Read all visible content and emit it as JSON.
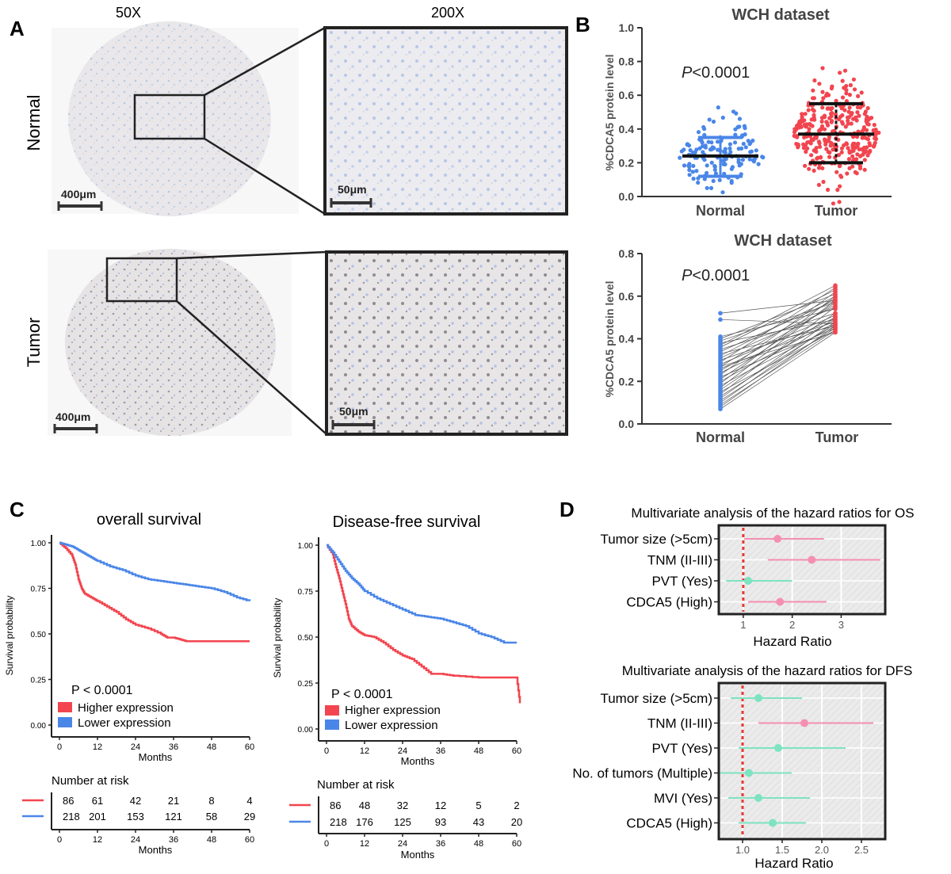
{
  "panel_labels": {
    "a": "A",
    "b": "B",
    "c": "C",
    "d": "D"
  },
  "panel_a": {
    "col_labels": [
      "50X",
      "200X"
    ],
    "row_labels": [
      "Normal",
      "Tumor"
    ],
    "scale_50x": "400μm",
    "scale_200x": "50μm"
  },
  "panel_b": {
    "y_ticks": [
      "0.0",
      "0.2",
      "0.4",
      "0.6",
      "0.8",
      "1.0"
    ],
    "y_ticks_paired": [
      "0.0",
      "0.2",
      "0.4",
      "0.6",
      "0.8"
    ],
    "p_prefix": "P",
    "p_suffix": "<0.0001"
  },
  "panel_c": {
    "y_ticks": [
      "0.00",
      "0.25",
      "0.50",
      "0.75",
      "1.00"
    ],
    "x_ticks": [
      "0",
      "12",
      "24",
      "36",
      "48",
      "60"
    ],
    "risk_title": "Number at risk"
  },
  "panel_d": {
    "x_ticks_os": [
      "1",
      "2",
      "3"
    ],
    "x_ticks_dfs": [
      "1.0",
      "1.5",
      "2.0",
      "2.5"
    ]
  },
  "colors": {
    "normal": "#4a86e8",
    "tumor": "#f2454f",
    "pink": "#f48fb1",
    "mint": "#7de3c0",
    "ref": "#e53935"
  },
  "chart_data": [
    {
      "type": "scatter",
      "title": "WCH dataset",
      "xlabel": "",
      "ylabel": "%CDCA5 protein level",
      "categories": [
        "Normal",
        "Tumor"
      ],
      "ylim": [
        0,
        1.0
      ],
      "annotation": "P<0.0001",
      "summary": {
        "Normal": {
          "median": 0.24,
          "lower": 0.12,
          "upper": 0.35
        },
        "Tumor": {
          "median": 0.37,
          "lower": 0.2,
          "upper": 0.55
        }
      }
    },
    {
      "type": "line",
      "title": "WCH dataset",
      "xlabel": "",
      "ylabel": "%CDCA5 protein level",
      "categories": [
        "Normal",
        "Tumor"
      ],
      "ylim": [
        0,
        0.8
      ],
      "annotation": "P<0.0001",
      "pairs": [
        [
          0.07,
          0.43
        ],
        [
          0.08,
          0.46
        ],
        [
          0.09,
          0.44
        ],
        [
          0.1,
          0.48
        ],
        [
          0.11,
          0.45
        ],
        [
          0.12,
          0.5
        ],
        [
          0.13,
          0.47
        ],
        [
          0.14,
          0.55
        ],
        [
          0.15,
          0.44
        ],
        [
          0.16,
          0.52
        ],
        [
          0.17,
          0.58
        ],
        [
          0.18,
          0.46
        ],
        [
          0.19,
          0.6
        ],
        [
          0.2,
          0.49
        ],
        [
          0.21,
          0.57
        ],
        [
          0.22,
          0.45
        ],
        [
          0.23,
          0.62
        ],
        [
          0.24,
          0.5
        ],
        [
          0.25,
          0.56
        ],
        [
          0.26,
          0.47
        ],
        [
          0.27,
          0.59
        ],
        [
          0.28,
          0.51
        ],
        [
          0.29,
          0.64
        ],
        [
          0.3,
          0.48
        ],
        [
          0.31,
          0.55
        ],
        [
          0.32,
          0.6
        ],
        [
          0.33,
          0.46
        ],
        [
          0.34,
          0.58
        ],
        [
          0.35,
          0.52
        ],
        [
          0.36,
          0.63
        ],
        [
          0.38,
          0.49
        ],
        [
          0.39,
          0.57
        ],
        [
          0.4,
          0.61
        ],
        [
          0.41,
          0.54
        ],
        [
          0.52,
          0.58
        ],
        [
          0.49,
          0.47
        ],
        [
          0.37,
          0.65
        ],
        [
          0.27,
          0.43
        ]
      ]
    },
    {
      "type": "line",
      "title": "overall survival",
      "xlabel": "Months",
      "ylabel": "Survival probability",
      "xlim": [
        0,
        60
      ],
      "ylim": [
        0,
        1
      ],
      "annotation": "P < 0.0001",
      "series": [
        {
          "name": "Higher expression",
          "x": [
            0,
            2,
            4,
            5,
            6,
            7,
            8,
            10,
            12,
            15,
            18,
            21,
            24,
            28,
            32,
            34,
            36,
            38,
            40,
            48,
            60
          ],
          "y": [
            1,
            0.97,
            0.93,
            0.88,
            0.8,
            0.75,
            0.72,
            0.7,
            0.68,
            0.65,
            0.62,
            0.58,
            0.55,
            0.53,
            0.5,
            0.48,
            0.48,
            0.47,
            0.46,
            0.46,
            0.46
          ]
        },
        {
          "name": "Lower expression",
          "x": [
            0,
            2,
            4,
            6,
            8,
            10,
            12,
            16,
            20,
            24,
            28,
            32,
            36,
            40,
            44,
            48,
            52,
            56,
            60
          ],
          "y": [
            1,
            0.99,
            0.98,
            0.96,
            0.94,
            0.92,
            0.9,
            0.87,
            0.85,
            0.82,
            0.8,
            0.79,
            0.78,
            0.77,
            0.76,
            0.75,
            0.73,
            0.7,
            0.68
          ]
        }
      ],
      "risk_table": {
        "times": [
          0,
          12,
          24,
          36,
          48,
          60
        ],
        "rows": [
          [
            86,
            61,
            42,
            21,
            8,
            4
          ],
          [
            218,
            201,
            153,
            121,
            58,
            29
          ]
        ]
      }
    },
    {
      "type": "line",
      "title": "Disease-free survival",
      "xlabel": "Months",
      "ylabel": "Survival probability",
      "xlim": [
        0,
        60
      ],
      "ylim": [
        0,
        1
      ],
      "annotation": "P < 0.0001",
      "series": [
        {
          "name": "Higher expression",
          "x": [
            0,
            2,
            3,
            4,
            5,
            6,
            7,
            8,
            10,
            12,
            15,
            18,
            21,
            24,
            27,
            30,
            33,
            36,
            40,
            48,
            56,
            58,
            60,
            61
          ],
          "y": [
            1,
            0.95,
            0.88,
            0.82,
            0.75,
            0.68,
            0.6,
            0.56,
            0.53,
            0.51,
            0.5,
            0.47,
            0.43,
            0.4,
            0.38,
            0.34,
            0.3,
            0.3,
            0.29,
            0.28,
            0.28,
            0.28,
            0.28,
            0.14
          ]
        },
        {
          "name": "Lower expression",
          "x": [
            0,
            2,
            4,
            6,
            8,
            10,
            12,
            16,
            20,
            24,
            28,
            32,
            36,
            40,
            44,
            48,
            52,
            56,
            60
          ],
          "y": [
            1,
            0.96,
            0.91,
            0.86,
            0.82,
            0.79,
            0.75,
            0.71,
            0.68,
            0.65,
            0.62,
            0.61,
            0.6,
            0.58,
            0.56,
            0.52,
            0.5,
            0.47,
            0.47
          ]
        }
      ],
      "risk_table": {
        "times": [
          0,
          12,
          24,
          36,
          48,
          60
        ],
        "rows": [
          [
            86,
            48,
            32,
            12,
            5,
            2
          ],
          [
            218,
            176,
            125,
            93,
            43,
            20
          ]
        ]
      }
    },
    {
      "type": "scatter",
      "title": "Multivariate analysis of the hazard ratios for OS",
      "xlabel": "Hazard Ratio",
      "xlim": [
        0.5,
        3.9
      ],
      "reference": 1,
      "rows": [
        {
          "label": "Tumor size (>5cm)",
          "hr": 1.7,
          "low": 1.02,
          "high": 2.65
        },
        {
          "label": "TNM (II-III)",
          "hr": 2.4,
          "low": 1.5,
          "high": 3.8
        },
        {
          "label": "PVT (Yes)",
          "hr": 1.1,
          "low": 0.65,
          "high": 2.0
        },
        {
          "label": "CDCA5 (High)",
          "hr": 1.75,
          "low": 1.1,
          "high": 2.7
        }
      ]
    },
    {
      "type": "scatter",
      "title": "Multivariate analysis of the hazard ratios for DFS",
      "xlabel": "Hazard Ratio",
      "xlim": [
        0.7,
        2.8
      ],
      "reference": 1,
      "rows": [
        {
          "label": "Tumor size (>5cm)",
          "hr": 1.2,
          "low": 0.85,
          "high": 1.75
        },
        {
          "label": "TNM (II-III)",
          "hr": 1.78,
          "low": 1.2,
          "high": 2.65
        },
        {
          "label": "PVT (Yes)",
          "hr": 1.45,
          "low": 0.95,
          "high": 2.3
        },
        {
          "label": "No. of tumors (Multiple)",
          "hr": 1.08,
          "low": 0.72,
          "high": 1.62
        },
        {
          "label": "MVI (Yes)",
          "hr": 1.2,
          "low": 0.82,
          "high": 1.85
        },
        {
          "label": "CDCA5 (High)",
          "hr": 1.38,
          "low": 0.95,
          "high": 1.8
        }
      ]
    }
  ]
}
